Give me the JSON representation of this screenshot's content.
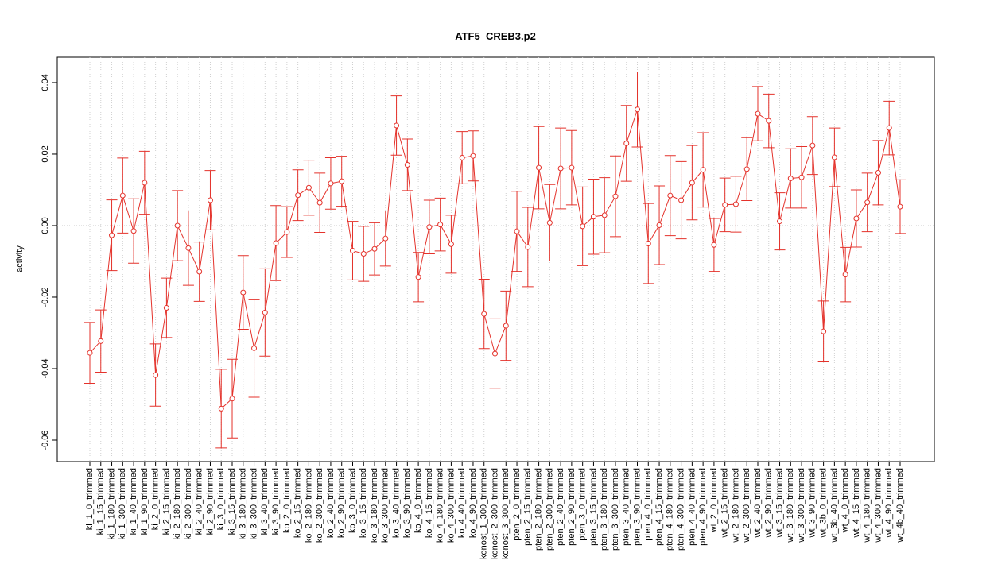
{
  "chart_data": {
    "type": "errorbar",
    "title": "ATF5_CREB3.p2",
    "y_label": "activity",
    "categories": [
      "ki_1_0_trimmed",
      "ki_1_15_trimmed",
      "ki_1_180_trimmed",
      "ki_1_300_trimmed",
      "ki_1_40_trimmed",
      "ki_1_90_trimmed",
      "ki_2_0_trimmed",
      "ki_2_15_trimmed",
      "ki_2_180_trimmed",
      "ki_2_300_trimmed",
      "ki_2_40_trimmed",
      "ki_2_90_trimmed",
      "ki_3_0_trimmed",
      "ki_3_15_trimmed",
      "ki_3_180_trimmed",
      "ki_3_300_trimmed",
      "ki_3_40_trimmed",
      "ki_3_90_trimmed",
      "ko_2_0_trimmed",
      "ko_2_15_trimmed",
      "ko_2_180_trimmed",
      "ko_2_300_trimmed",
      "ko_2_40_trimmed",
      "ko_2_90_trimmed",
      "ko_3_0_trimmed",
      "ko_3_15_trimmed",
      "ko_3_180_trimmed",
      "ko_3_300_trimmed",
      "ko_3_40_trimmed",
      "ko_3_90_trimmed",
      "ko_4_0_trimmed",
      "ko_4_15_trimmed",
      "ko_4_180_trimmed",
      "ko_4_300_trimmed",
      "ko_4_40_trimmed",
      "ko_4_90_trimmed",
      "konost_1_300_trimmed",
      "konost_2_300_trimmed",
      "konost_3_300_trimmed",
      "pten_2_0_trimmed",
      "pten_2_15_trimmed",
      "pten_2_180_trimmed",
      "pten_2_300_trimmed",
      "pten_2_40_trimmed",
      "pten_2_90_trimmed",
      "pten_3_0_trimmed",
      "pten_3_15_trimmed",
      "pten_3_180_trimmed",
      "pten_3_300_trimmed",
      "pten_3_40_trimmed",
      "pten_3_90_trimmed",
      "pten_4_0_trimmed",
      "pten_4_15_trimmed",
      "pten_4_180_trimmed",
      "pten_4_300_trimmed",
      "pten_4_40_trimmed",
      "pten_4_90_trimmed",
      "wt_2_0_trimmed",
      "wt_2_15_trimmed",
      "wt_2_180_trimmed",
      "wt_2_300_trimmed",
      "wt_2_40_trimmed",
      "wt_2_90_trimmed",
      "wt_3_15_trimmed",
      "wt_3_180_trimmed",
      "wt_3_300_trimmed",
      "wt_3_90_trimmed",
      "wt_3b_0_trimmed",
      "wt_3b_40_trimmed",
      "wt_4_0_trimmed",
      "wt_4_15_trimmed",
      "wt_4_180_trimmed",
      "wt_4_300_trimmed",
      "wt_4_90_trimmed",
      "wt_4b_40_trimmed"
    ],
    "values": [
      -0.0356,
      -0.0323,
      -0.0027,
      0.0084,
      -0.0015,
      0.012,
      -0.0418,
      -0.023,
      0.0,
      -0.0063,
      -0.0129,
      0.0071,
      -0.0512,
      -0.0484,
      -0.0187,
      -0.0343,
      -0.0243,
      -0.0049,
      -0.0018,
      0.0085,
      0.0106,
      0.0064,
      0.0118,
      0.0124,
      -0.007,
      -0.0079,
      -0.0065,
      -0.0036,
      0.028,
      0.017,
      -0.0144,
      -0.0004,
      0.0003,
      -0.0052,
      0.019,
      0.0195,
      -0.0247,
      -0.0358,
      -0.028,
      -0.0016,
      -0.006,
      0.0162,
      0.0008,
      0.016,
      0.0162,
      -0.0002,
      0.0025,
      0.0029,
      0.0082,
      0.023,
      0.0325,
      -0.005,
      0.0001,
      0.0084,
      0.0071,
      0.012,
      0.0156,
      -0.0054,
      0.0058,
      0.006,
      0.0158,
      0.0313,
      0.0293,
      0.0012,
      0.0132,
      0.0135,
      0.0224,
      -0.0296,
      0.0191,
      -0.0137,
      0.002,
      0.0065,
      0.0148,
      0.0273,
      0.0053
    ],
    "errors": [
      0.0085,
      0.0087,
      0.0099,
      0.0105,
      0.009,
      0.0088,
      0.0087,
      0.0083,
      0.0098,
      0.0104,
      0.0083,
      0.0083,
      0.011,
      0.011,
      0.0103,
      0.0137,
      0.0122,
      0.0105,
      0.0071,
      0.0071,
      0.0077,
      0.0083,
      0.0072,
      0.007,
      0.0082,
      0.0077,
      0.0073,
      0.0077,
      0.0083,
      0.0072,
      0.0069,
      0.0075,
      0.0074,
      0.0081,
      0.0073,
      0.007,
      0.0097,
      0.0097,
      0.0097,
      0.0112,
      0.0111,
      0.0115,
      0.0107,
      0.0113,
      0.0104,
      0.011,
      0.0105,
      0.0105,
      0.0113,
      0.0106,
      0.0105,
      0.0112,
      0.011,
      0.0112,
      0.0108,
      0.0104,
      0.0104,
      0.0074,
      0.0075,
      0.0078,
      0.0088,
      0.0076,
      0.0075,
      0.008,
      0.0083,
      0.0086,
      0.0081,
      0.0085,
      0.0082,
      0.0076,
      0.008,
      0.0082,
      0.009,
      0.0075,
      0.0075
    ],
    "color": "#e4322b",
    "ylim": [
      -0.066,
      0.0471
    ],
    "yticks": [
      -0.06,
      -0.04,
      -0.02,
      {
        "value": 0,
        "label": "0.00"
      },
      0.02,
      0.04
    ],
    "grid": true,
    "reference_line": 0
  }
}
